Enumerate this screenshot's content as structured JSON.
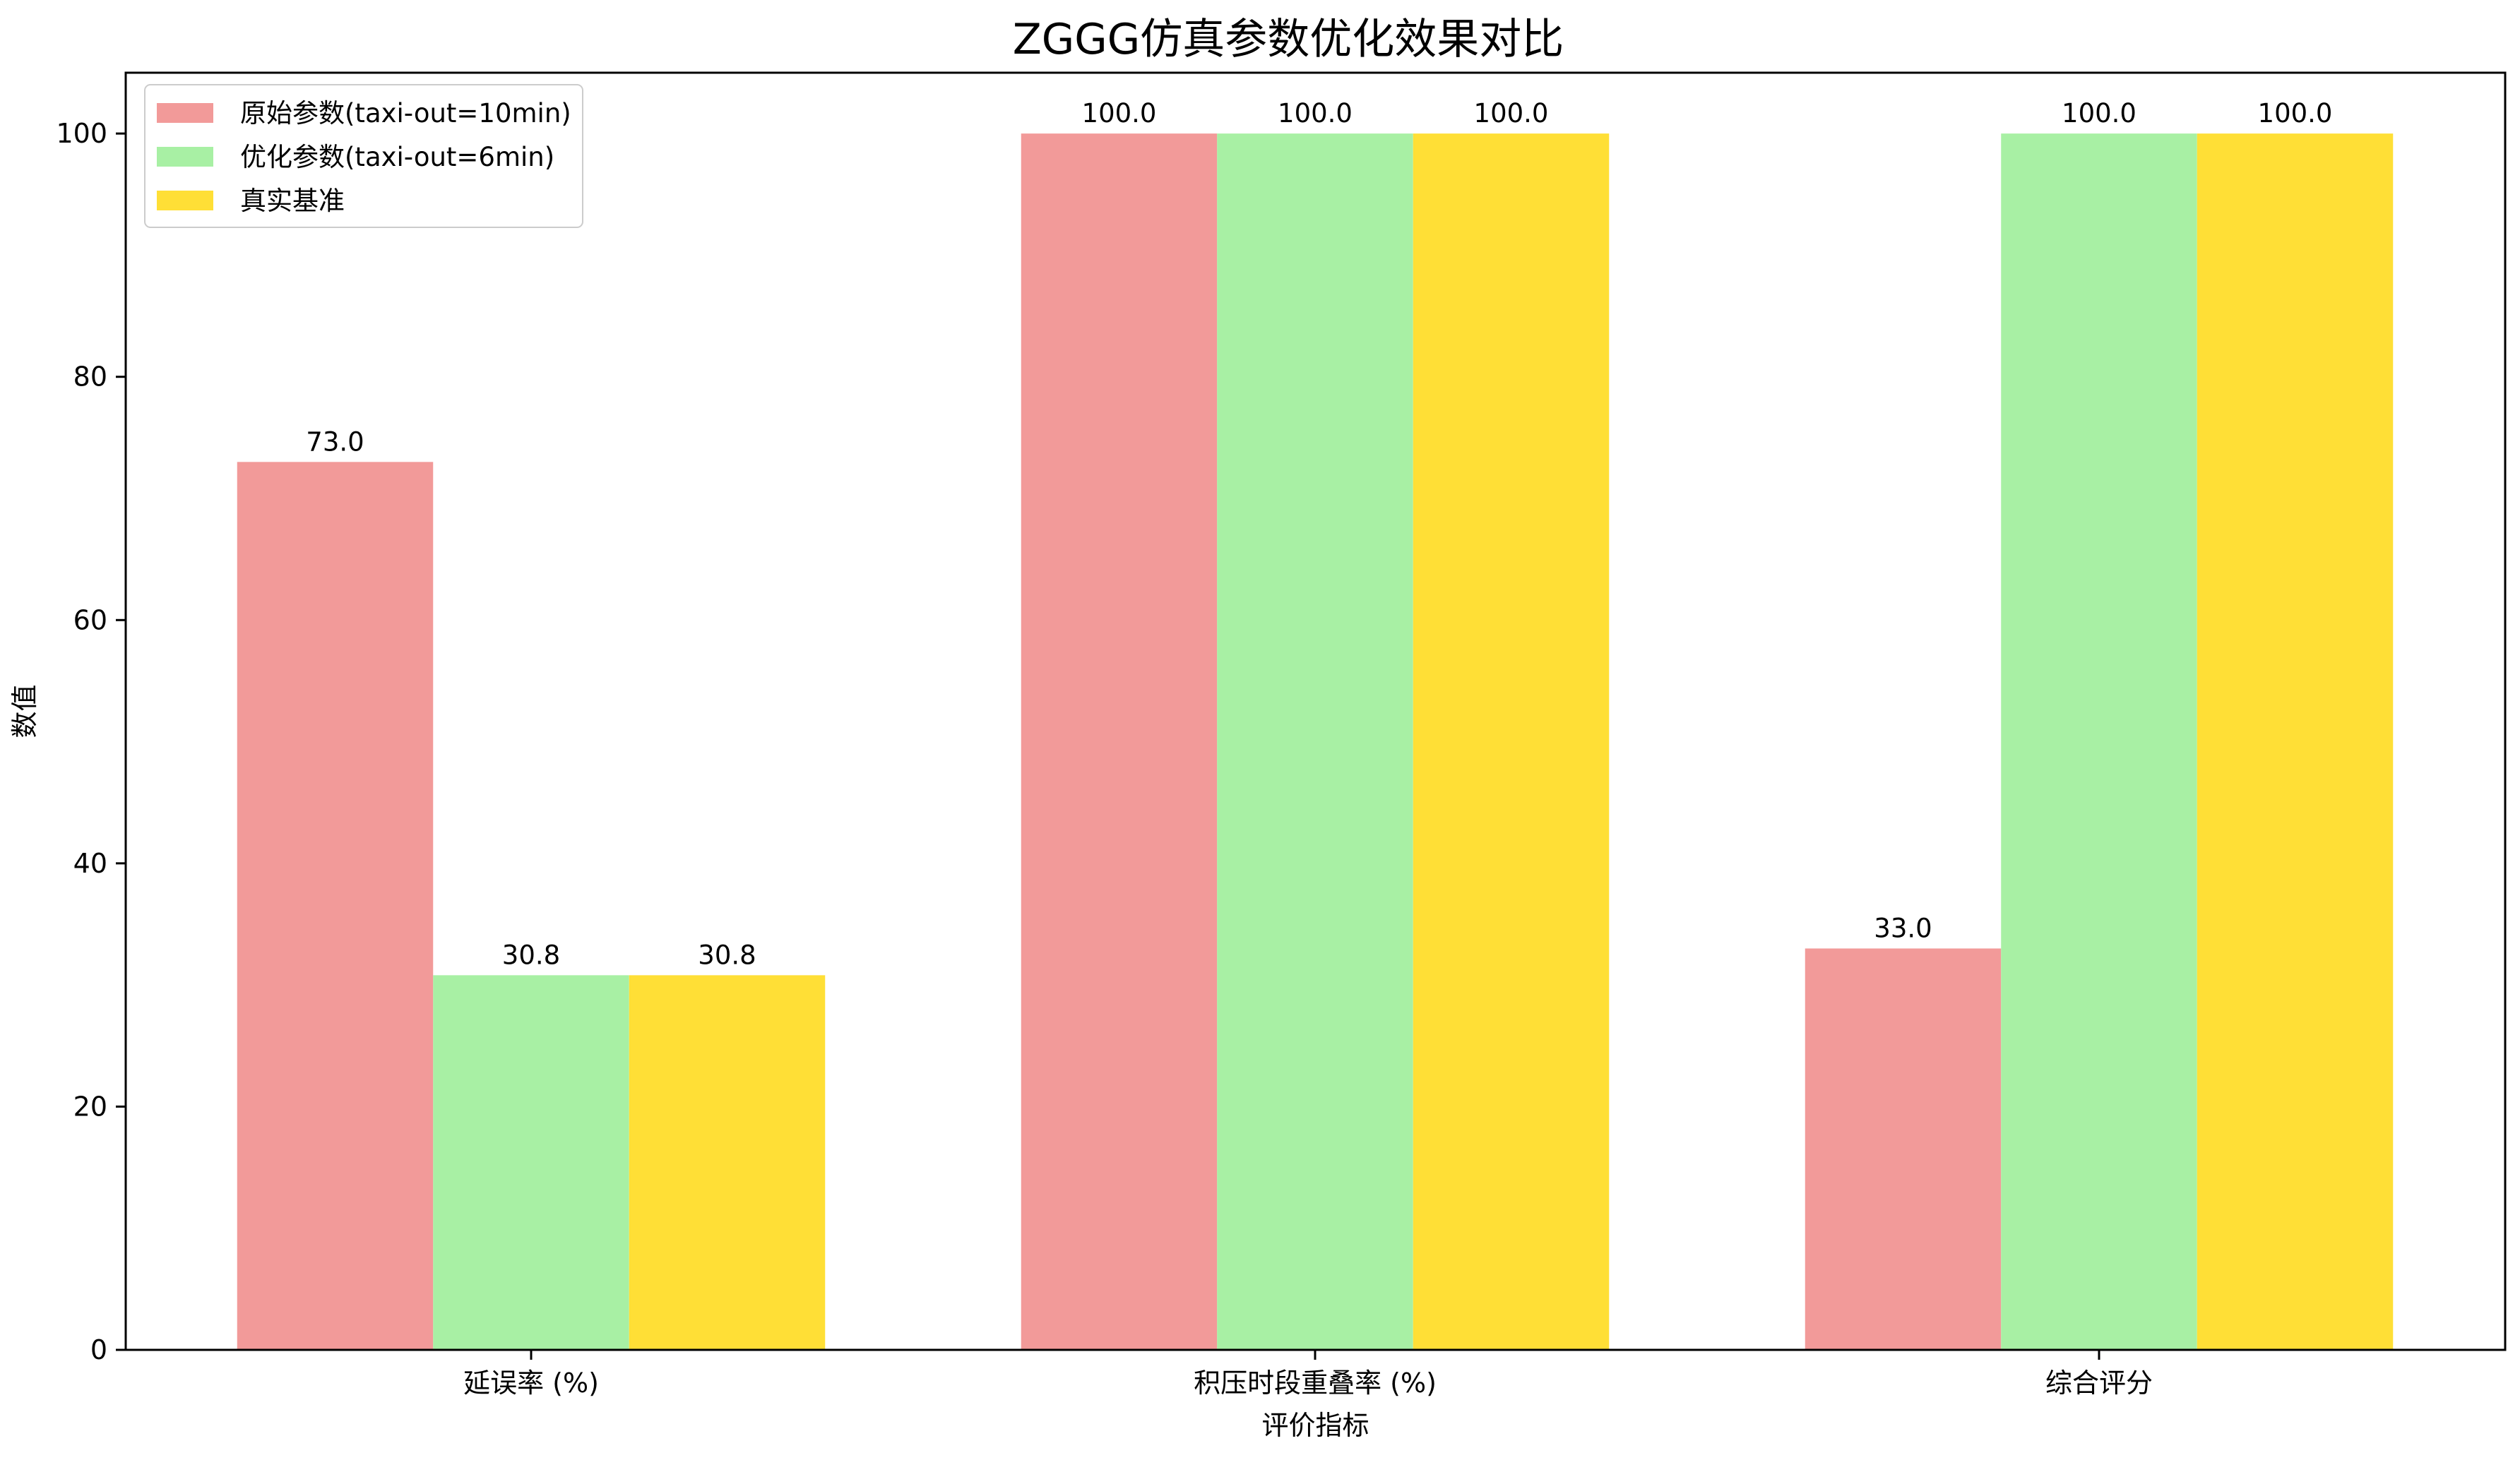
{
  "chart_data": {
    "type": "bar",
    "title": "ZGGG仿真参数优化效果对比",
    "xlabel": "评价指标",
    "ylabel": "数值",
    "categories": [
      "延误率 (%)",
      "积压时段重叠率 (%)",
      "综合评分"
    ],
    "series": [
      {
        "name": "原始参数(taxi-out=10min)",
        "values": [
          73.0,
          100.0,
          33.0
        ],
        "color": "#f29a99"
      },
      {
        "name": "优化参数(taxi-out=6min)",
        "values": [
          30.8,
          100.0,
          100.0
        ],
        "color": "#a8f0a4"
      },
      {
        "name": "真实基准",
        "values": [
          30.8,
          100.0,
          100.0
        ],
        "color": "#ffdf36"
      }
    ],
    "data_labels": [
      [
        "73.0",
        "100.0",
        "33.0"
      ],
      [
        "30.8",
        "100.0",
        "100.0"
      ],
      [
        "30.8",
        "100.0",
        "100.0"
      ]
    ],
    "ylim": [
      0,
      105
    ],
    "yticks": [
      0,
      20,
      40,
      60,
      80,
      100
    ],
    "legend_position": "top-left",
    "grid": false
  }
}
